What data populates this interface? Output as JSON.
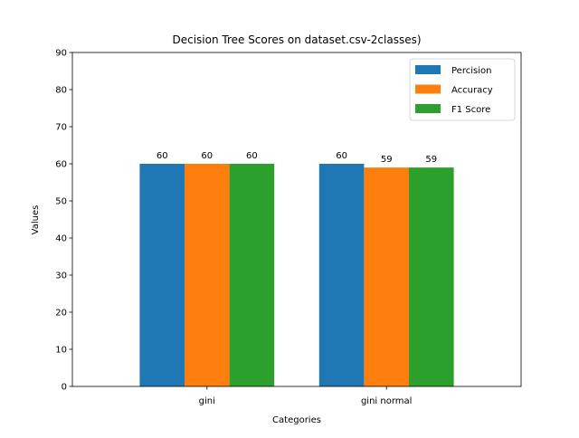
{
  "chart_data": {
    "type": "bar",
    "title": "Decision Tree Scores on dataset.csv-2classes)",
    "xlabel": "Categories",
    "ylabel": "Values",
    "categories": [
      "gini",
      "gini normal"
    ],
    "series": [
      {
        "name": "Percision",
        "color": "#1f77b4",
        "values": [
          60,
          60
        ]
      },
      {
        "name": "Accuracy",
        "color": "#ff7f0e",
        "values": [
          60,
          59
        ]
      },
      {
        "name": "F1 Score",
        "color": "#2ca02c",
        "values": [
          60,
          59
        ]
      }
    ],
    "ylim": [
      0,
      90
    ],
    "yticks": [
      0,
      10,
      20,
      30,
      40,
      50,
      60,
      70,
      80,
      90
    ],
    "grid": false,
    "legend_position": "top-right",
    "show_value_labels": true
  }
}
